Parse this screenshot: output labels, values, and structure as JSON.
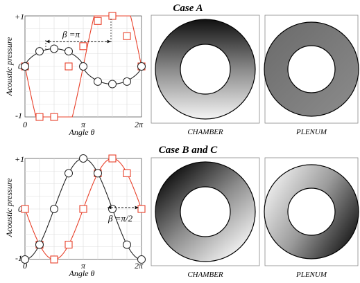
{
  "panels": [
    {
      "title": "Case A",
      "ylabel": "Acoustic pressure",
      "xlabel": "Angle θ",
      "yticks": [
        "+1",
        "0",
        "-1"
      ],
      "xticks": [
        "0",
        "π",
        "2π"
      ],
      "phase_label": "β =π",
      "labels": [
        "CHAMBER",
        "PLENUM"
      ]
    },
    {
      "title": "Case B and C",
      "ylabel": "Acoustic pressure",
      "xlabel": "Angle θ",
      "yticks": [
        "+1",
        "0",
        "-1"
      ],
      "xticks": [
        "0",
        "π",
        "2π"
      ],
      "phase_label": "β =π/2",
      "labels": [
        "CHAMBER",
        "PLENUM"
      ]
    }
  ],
  "chart_data": [
    {
      "type": "line",
      "title": "Case A",
      "xlabel": "Angle θ",
      "ylabel": "Acoustic pressure",
      "xlim": [
        0,
        6.2832
      ],
      "ylim": [
        -1,
        1
      ],
      "series": [
        {
          "color": "#e8402a",
          "marker": "square",
          "kind": "square-wave",
          "x": [
            0,
            0.785,
            1.571,
            2.356,
            3.142,
            3.927,
            4.712,
            5.498,
            6.283
          ],
          "y": [
            0,
            -1,
            -1,
            0,
            0.4,
            0.9,
            1,
            0.6,
            0
          ]
        },
        {
          "color": "#222222",
          "marker": "circle",
          "kind": "triangle-like",
          "x": [
            0,
            0.785,
            1.571,
            2.356,
            3.142,
            3.927,
            4.712,
            5.498,
            6.283
          ],
          "y": [
            0,
            0.3,
            0.35,
            0.3,
            0,
            -0.3,
            -0.35,
            -0.3,
            0
          ]
        }
      ]
    },
    {
      "type": "line",
      "title": "Case B and C",
      "xlabel": "Angle θ",
      "ylabel": "Acoustic pressure",
      "xlim": [
        0,
        6.2832
      ],
      "ylim": [
        -1,
        1
      ],
      "series": [
        {
          "color": "#e8402a",
          "marker": "square",
          "x": [
            0,
            0.785,
            1.571,
            2.356,
            3.142,
            3.927,
            4.712,
            5.498,
            6.283
          ],
          "y": [
            0,
            -0.7071,
            -1,
            -0.7071,
            0,
            0.7071,
            1,
            0.7071,
            0
          ]
        },
        {
          "color": "#222222",
          "marker": "circle",
          "x": [
            0,
            0.785,
            1.571,
            2.356,
            3.142,
            3.927,
            4.712,
            5.498,
            6.283
          ],
          "y": [
            -1,
            -0.7071,
            0,
            0.7071,
            1,
            0.7071,
            0,
            -0.7071,
            -1
          ]
        }
      ]
    }
  ]
}
